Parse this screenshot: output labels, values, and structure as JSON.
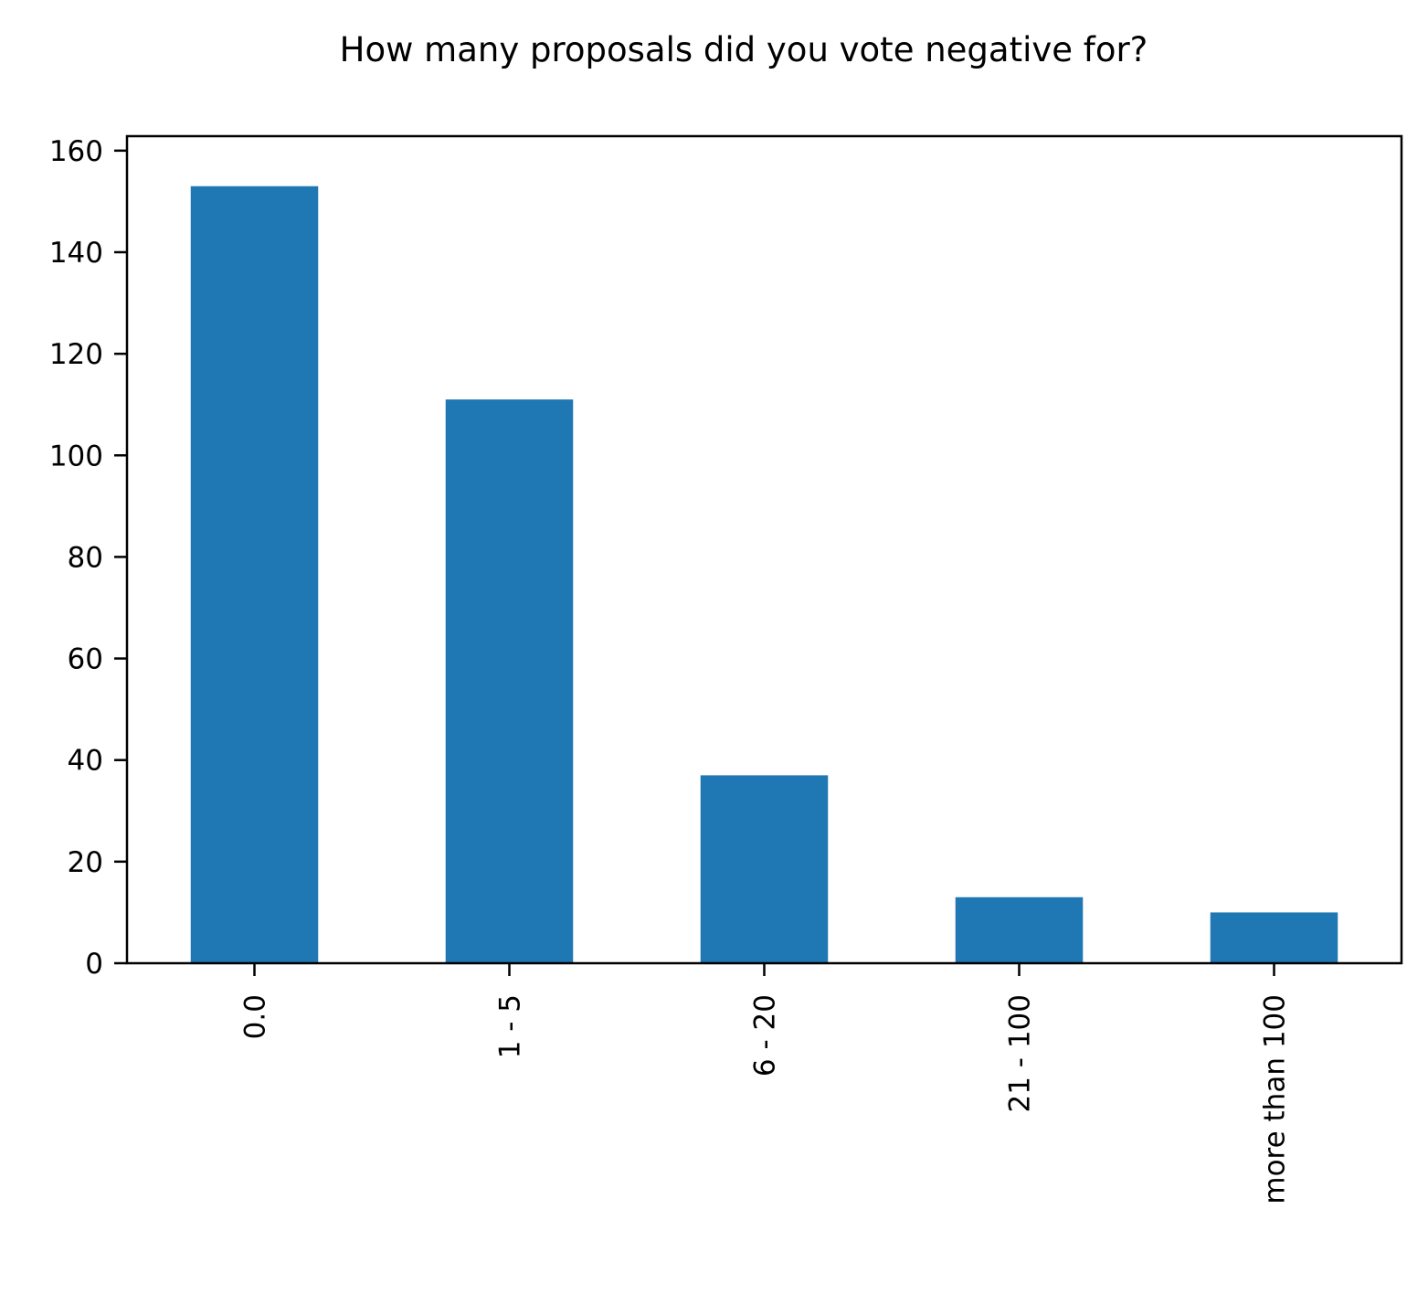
{
  "chart_data": {
    "type": "bar",
    "title": "How many proposals did you vote negative for?",
    "xlabel": "",
    "ylabel": "",
    "categories": [
      "0.0",
      "1 - 5",
      "6 - 20",
      "21 - 100",
      "more than 100"
    ],
    "values": [
      153,
      111,
      37,
      13,
      10
    ],
    "ylim": [
      0,
      160
    ],
    "yticks": [
      0,
      20,
      40,
      60,
      80,
      100,
      120,
      140,
      160
    ],
    "x_tick_rotation": "vertical",
    "grid": false,
    "legend": "none",
    "bar_color": "#1f77b4"
  }
}
